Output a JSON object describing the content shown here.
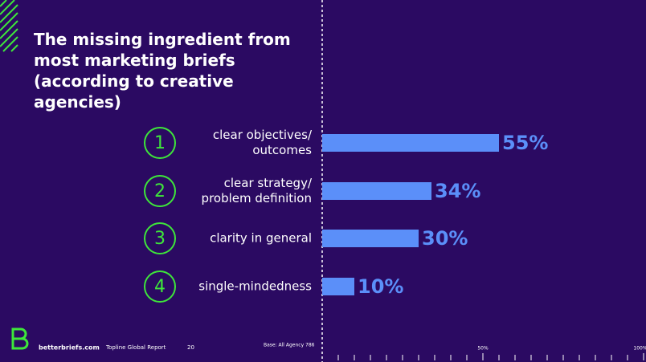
{
  "chart_data": {
    "type": "hbar",
    "title": "The missing ingredient from most marketing briefs (according to creative agencies)",
    "ranks": [
      "1",
      "2",
      "3",
      "4"
    ],
    "categories": [
      "clear objectives/ outcomes",
      "clear strategy/ problem definition",
      "clarity in general",
      "single-mindedness"
    ],
    "values": [
      55,
      34,
      30,
      10
    ],
    "value_labels": [
      "55%",
      "34%",
      "30%",
      "10%"
    ],
    "color": "#5b8ff9",
    "rank_color": "#3ee63a",
    "xlim": [
      0,
      100
    ],
    "xticks": [
      {
        "value": 50,
        "label": "50%"
      },
      {
        "value": 100,
        "label": "100%"
      }
    ],
    "minor_xticks": [
      5,
      10,
      15,
      20,
      25,
      30,
      35,
      40,
      45,
      55,
      60,
      65,
      70,
      75,
      80,
      85,
      90,
      95
    ]
  },
  "footer": {
    "site": "betterbriefs.com",
    "report": "Topline Global Report",
    "page": "20",
    "base": "Base: All Agency 786"
  }
}
